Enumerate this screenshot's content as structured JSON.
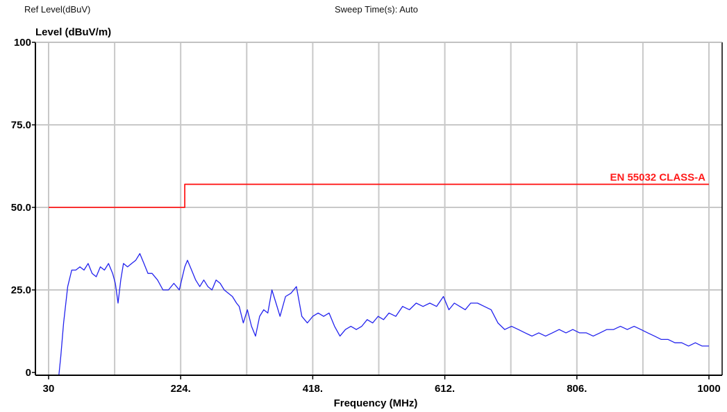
{
  "header": {
    "ref_level": "Ref Level(dBuV)",
    "sweep_time": "Sweep Time(s): Auto"
  },
  "colors": {
    "trace": "#2222ee",
    "limit": "#ff1a1a",
    "grid": "#c8c8c8",
    "axes": "#000000"
  },
  "chart_data": {
    "type": "line",
    "title": "",
    "xlabel": "Frequency (MHz)",
    "ylabel": "Level (dBuV/m)",
    "xlim": [
      30,
      1000
    ],
    "ylim": [
      0,
      100
    ],
    "x_ticks": [
      30,
      224,
      418,
      612,
      806,
      1000
    ],
    "x_tick_labels": [
      "30",
      "224.",
      "418.",
      "612.",
      "806.",
      "1000"
    ],
    "y_ticks": [
      0,
      25,
      50,
      75,
      100
    ],
    "y_tick_labels": [
      "0",
      "25.0",
      "50.0",
      "75.0",
      "100"
    ],
    "grid": true,
    "series": [
      {
        "name": "EN 55032 CLASS-A",
        "kind": "limit",
        "x": [
          30,
          230,
          230,
          1000
        ],
        "y": [
          50,
          50,
          57,
          57
        ]
      },
      {
        "kind": "trace",
        "x": [
          45,
          48,
          52,
          58,
          64,
          70,
          76,
          82,
          88,
          94,
          100,
          106,
          112,
          118,
          124,
          128,
          132,
          136,
          140,
          146,
          152,
          158,
          164,
          170,
          176,
          182,
          190,
          198,
          206,
          214,
          222,
          230,
          234,
          240,
          246,
          252,
          258,
          264,
          270,
          276,
          282,
          288,
          294,
          300,
          306,
          310,
          316,
          322,
          328,
          334,
          340,
          346,
          352,
          358,
          364,
          370,
          378,
          386,
          394,
          402,
          410,
          418,
          426,
          434,
          442,
          450,
          458,
          466,
          474,
          482,
          490,
          498,
          506,
          514,
          522,
          530,
          540,
          550,
          560,
          570,
          580,
          590,
          600,
          610,
          618,
          626,
          634,
          642,
          650,
          660,
          670,
          680,
          690,
          700,
          710,
          720,
          730,
          740,
          750,
          760,
          770,
          780,
          790,
          800,
          810,
          820,
          830,
          840,
          850,
          860,
          870,
          880,
          890,
          900,
          910,
          920,
          930,
          940,
          950,
          960,
          970,
          980,
          990,
          1000
        ],
        "y": [
          -1,
          5,
          15,
          26,
          31,
          31,
          32,
          31,
          33,
          30,
          29,
          32,
          31,
          33,
          30,
          27,
          21,
          28,
          33,
          32,
          33,
          34,
          36,
          33,
          30,
          30,
          28,
          25,
          25,
          27,
          25,
          32,
          34,
          31,
          28,
          26,
          28,
          26,
          25,
          28,
          27,
          25,
          24,
          23,
          21,
          20,
          15,
          19,
          14,
          11,
          17,
          19,
          18,
          25,
          21,
          17,
          23,
          24,
          26,
          17,
          15,
          17,
          18,
          17,
          18,
          14,
          11,
          13,
          14,
          13,
          14,
          16,
          15,
          17,
          16,
          18,
          17,
          20,
          19,
          21,
          20,
          21,
          20,
          23,
          19,
          21,
          20,
          19,
          21,
          21,
          20,
          19,
          15,
          13,
          14,
          13,
          12,
          11,
          12,
          11,
          12,
          13,
          12,
          13,
          12,
          12,
          11,
          12,
          13,
          13,
          14,
          13,
          14,
          13,
          12,
          11,
          10,
          10,
          9,
          9,
          8,
          9,
          8,
          8
        ]
      }
    ]
  }
}
